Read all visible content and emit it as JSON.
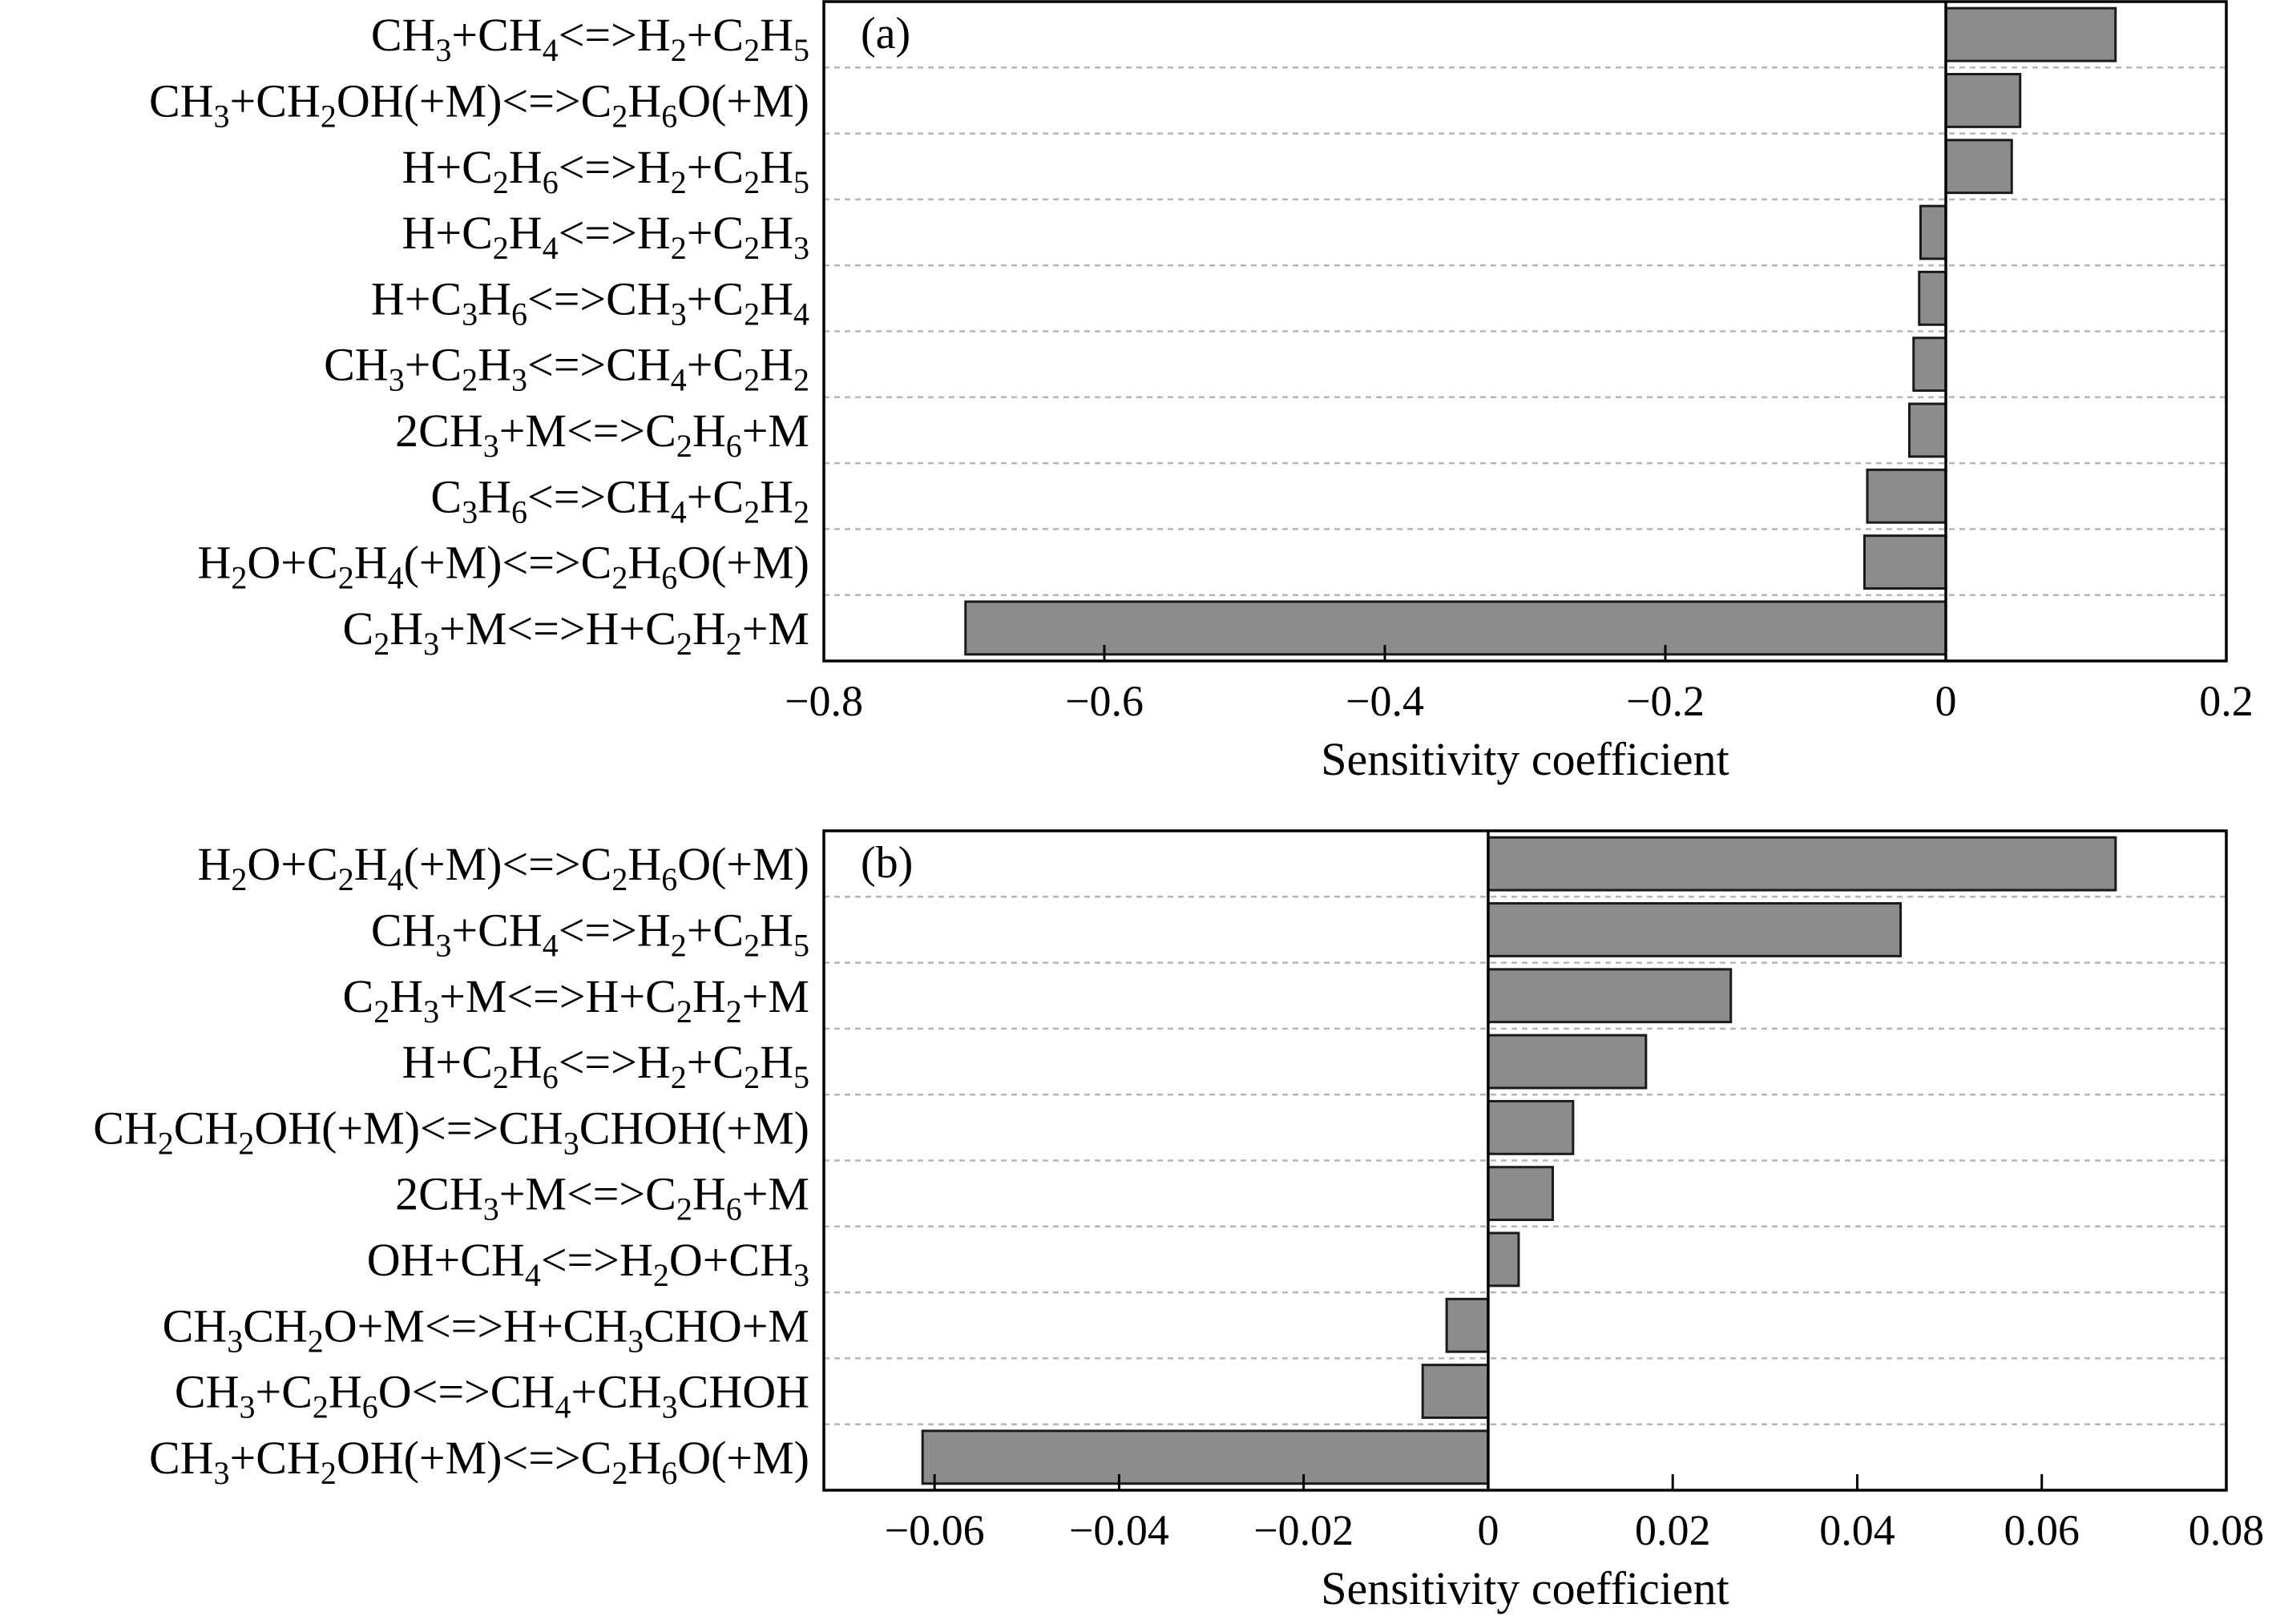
{
  "colors": {
    "bar_fill": "#8c8c8c",
    "bar_stroke": "#1a1a1a",
    "grid": "#b5b5b5",
    "axis": "#000000"
  },
  "chart_data": [
    {
      "type": "bar",
      "orientation": "horizontal",
      "panel_label": "(a)",
      "xlabel": "Sensitivity coefficient",
      "xlim": [
        -0.8,
        0.2
      ],
      "xticks": [
        -0.8,
        -0.6,
        -0.4,
        -0.2,
        0,
        0.2
      ],
      "xtick_labels": [
        "−0.8",
        "−0.6",
        "−0.4",
        "−0.2",
        "0",
        "0.2"
      ],
      "grid": "dashed horizontal separators between bars",
      "categories": [
        "CH3+CH4<=>H2+C2H5",
        "CH3+CH2OH(+M)<=>C2H6O(+M)",
        "H+C2H6<=>H2+C2H5",
        "H+C2H4<=>H2+C2H3",
        "H+C3H6<=>CH3+C2H4",
        "CH3+C2H3<=>CH4+C2H2",
        "2CH3+M<=>C2H6+M",
        "C3H6<=>CH4+C2H2",
        "H2O+C2H4(+M)<=>C2H6O(+M)",
        "C2H3+M<=>H+C2H2+M"
      ],
      "values": [
        0.121,
        0.053,
        0.047,
        -0.018,
        -0.019,
        -0.023,
        -0.026,
        -0.056,
        -0.058,
        -0.699
      ]
    },
    {
      "type": "bar",
      "orientation": "horizontal",
      "panel_label": "(b)",
      "xlabel": "Sensitivity coefficient",
      "xlim": [
        -0.072,
        0.08
      ],
      "xticks": [
        -0.06,
        -0.04,
        -0.02,
        0,
        0.02,
        0.04,
        0.06,
        0.08
      ],
      "xtick_labels": [
        "−0.06",
        "−0.04",
        "−0.02",
        "0",
        "0.02",
        "0.04",
        "0.06",
        "0.08"
      ],
      "grid": "dashed horizontal separators between bars",
      "categories": [
        "H2O+C2H4(+M)<=>C2H6O(+M)",
        "CH3+CH4<=>H2+C2H5",
        "C2H3+M<=>H+C2H2+M",
        "H+C2H6<=>H2+C2H5",
        "CH2CH2OH(+M)<=>CH3CHOH(+M)",
        "2CH3+M<=>C2H6+M",
        "OH+CH4<=>H2O+CH3",
        "CH3CH2O+M<=>H+CH3CHO+M",
        "CH3+C2H6O<=>CH4+CH3CHOH",
        "CH3+CH2OH(+M)<=>C2H6O(+M)"
      ],
      "values": [
        0.068,
        0.0447,
        0.0263,
        0.0171,
        0.0092,
        0.007,
        0.0033,
        -0.0045,
        -0.0071,
        -0.0613
      ]
    }
  ]
}
